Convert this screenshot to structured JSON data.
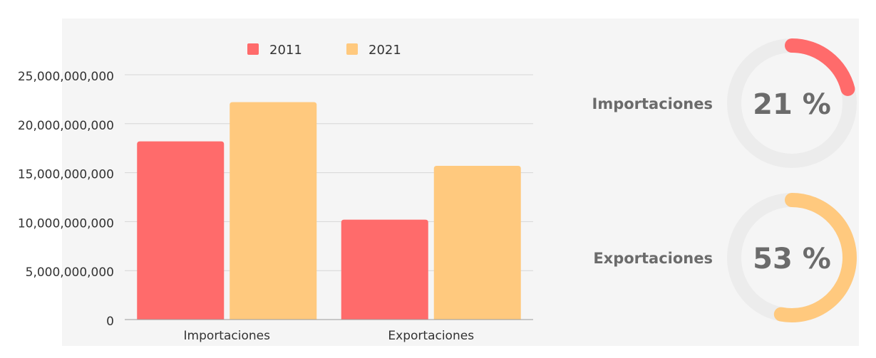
{
  "colors": {
    "series_2011": "#ff6b6b",
    "series_2021": "#ffc97e",
    "ring_track": "#ececec",
    "panel_bg": "#f5f5f5",
    "grid": "#d6d6d6",
    "text": "#333333",
    "stat_text": "#6b6b6b"
  },
  "chart_data": {
    "type": "bar",
    "categories": [
      "Importaciones",
      "Exportaciones"
    ],
    "series": [
      {
        "name": "2011",
        "values": [
          18200000000,
          10200000000
        ]
      },
      {
        "name": "2021",
        "values": [
          22200000000,
          15700000000
        ]
      }
    ],
    "yticks": [
      "0",
      "5,000,000,000",
      "10,000,000,000",
      "15,000,000,000",
      "20,000,000,000",
      "25,000,000,000"
    ],
    "ylim": [
      0,
      25000000000
    ],
    "grid": true,
    "legend": "top"
  },
  "stats": [
    {
      "label": "Importaciones",
      "value_text": "21 %",
      "percent": 21,
      "color": "#ff6b6b"
    },
    {
      "label": "Exportaciones",
      "value_text": "53 %",
      "percent": 53,
      "color": "#ffc97e"
    }
  ]
}
